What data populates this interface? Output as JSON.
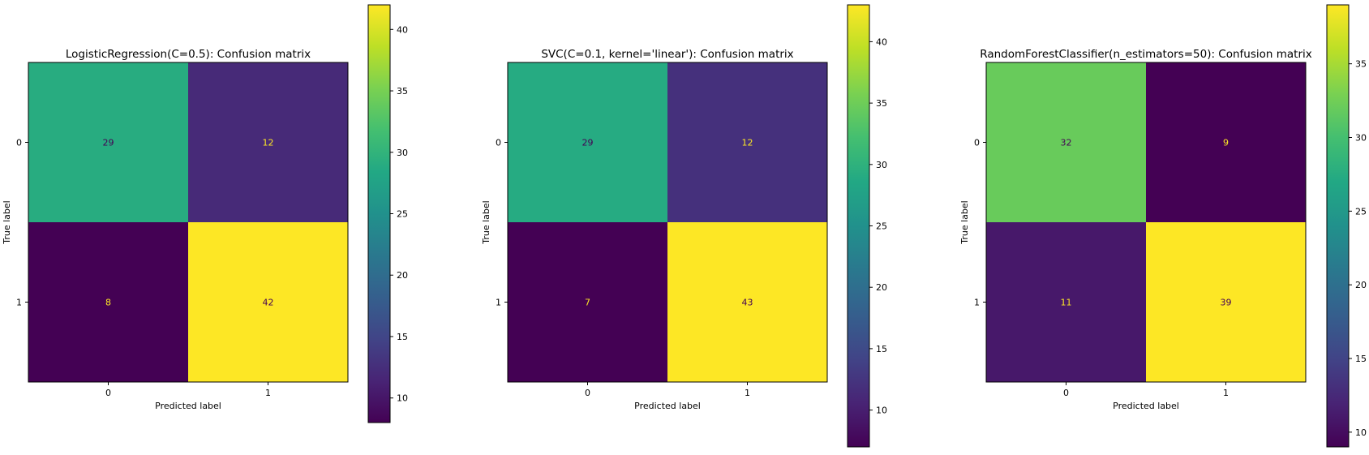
{
  "chart_data": [
    {
      "type": "heatmap",
      "title": "LogisticRegression(C=0.5): Confusion matrix",
      "xlabel": "Predicted label",
      "ylabel": "True label",
      "x_ticks": [
        "0",
        "1"
      ],
      "y_ticks": [
        "0",
        "1"
      ],
      "values": [
        [
          29,
          12
        ],
        [
          8,
          42
        ]
      ],
      "colormap": "viridis",
      "colorbar": {
        "range": [
          8,
          42
        ],
        "ticks": [
          10,
          15,
          20,
          25,
          30,
          35,
          40
        ]
      }
    },
    {
      "type": "heatmap",
      "title": "SVC(C=0.1, kernel='linear'): Confusion matrix",
      "xlabel": "Predicted label",
      "ylabel": "True label",
      "x_ticks": [
        "0",
        "1"
      ],
      "y_ticks": [
        "0",
        "1"
      ],
      "values": [
        [
          29,
          12
        ],
        [
          7,
          43
        ]
      ],
      "colormap": "viridis",
      "colorbar": {
        "range": [
          7,
          43
        ],
        "ticks": [
          10,
          15,
          20,
          25,
          30,
          35,
          40
        ]
      }
    },
    {
      "type": "heatmap",
      "title": "RandomForestClassifier(n_estimators=50): Confusion matrix",
      "xlabel": "Predicted label",
      "ylabel": "True label",
      "x_ticks": [
        "0",
        "1"
      ],
      "y_ticks": [
        "0",
        "1"
      ],
      "values": [
        [
          32,
          9
        ],
        [
          11,
          39
        ]
      ],
      "colormap": "viridis",
      "colorbar": {
        "range": [
          9,
          39
        ],
        "ticks": [
          10,
          15,
          20,
          25,
          30,
          35
        ]
      }
    }
  ]
}
